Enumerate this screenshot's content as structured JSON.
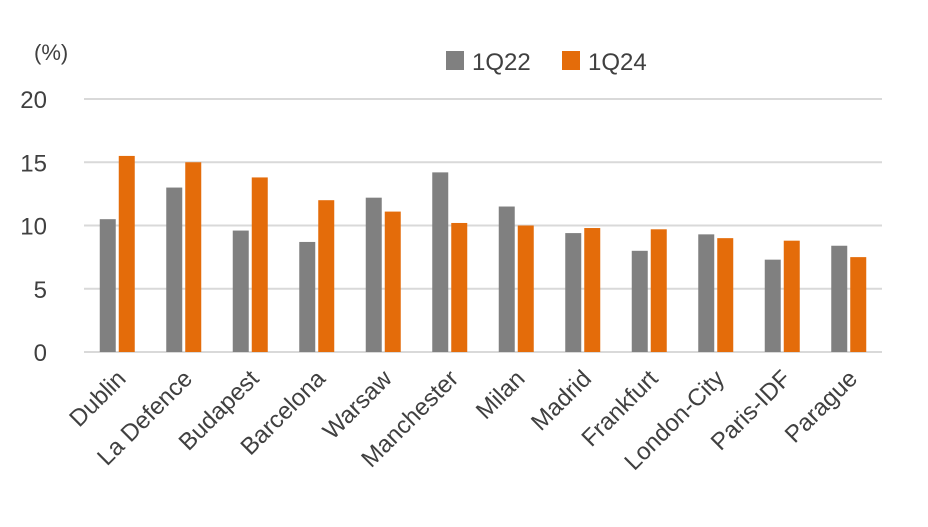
{
  "chart_data": {
    "type": "bar",
    "title": "",
    "xlabel": "",
    "ylabel": "(%)",
    "ylim": [
      0,
      20
    ],
    "yticks": [
      0,
      5,
      10,
      15,
      20
    ],
    "grid": true,
    "legend_position": "top-center",
    "categories": [
      "Dublin",
      "La Defence",
      "Budapest",
      "Barcelona",
      "Warsaw",
      "Manchester",
      "Milan",
      "Madrid",
      "Frankfurt",
      "London-City",
      "Paris-IDF",
      "Parague"
    ],
    "series": [
      {
        "name": "1Q22",
        "color": "#808080",
        "values": [
          10.5,
          13.0,
          9.6,
          8.7,
          12.2,
          14.2,
          11.5,
          9.4,
          8.0,
          9.3,
          7.3,
          8.4
        ]
      },
      {
        "name": "1Q24",
        "color": "#e46c0a",
        "values": [
          15.5,
          15.0,
          13.8,
          12.0,
          11.1,
          10.2,
          10.0,
          9.8,
          9.7,
          9.0,
          8.8,
          7.5
        ]
      }
    ]
  }
}
